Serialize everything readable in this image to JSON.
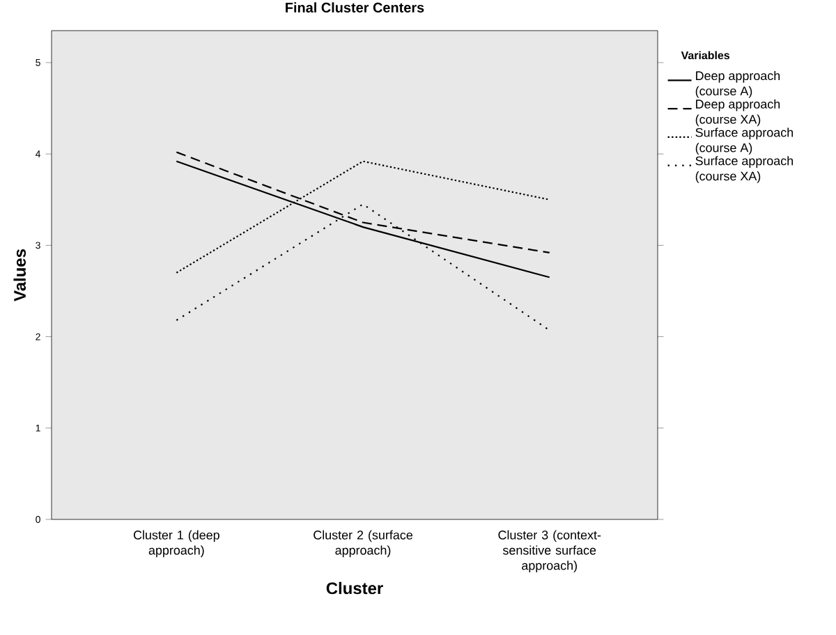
{
  "chart_data": {
    "type": "line",
    "title": "Final Cluster Centers",
    "xlabel": "Cluster",
    "ylabel": "Values",
    "legend_title": "Variables",
    "legend": "right",
    "grid": false,
    "marker": "none",
    "categories": [
      "Cluster 1 (deep approach)",
      "Cluster 2 (surface approach)",
      "Cluster 3 (context-sensitive surface approach)"
    ],
    "ylim": [
      0,
      5.35
    ],
    "yticks": [
      0,
      1,
      2,
      3,
      4,
      5
    ],
    "series": [
      {
        "name": "Deep approach (course A)",
        "color": "#000000",
        "line_style": "solid",
        "values": [
          3.92,
          3.2,
          2.65
        ]
      },
      {
        "name": "Deep approach (course XA)",
        "color": "#000000",
        "line_style": "dashed",
        "values": [
          4.02,
          3.25,
          2.92
        ]
      },
      {
        "name": "Surface approach (course A)",
        "color": "#000000",
        "line_style": "dotted",
        "values": [
          2.7,
          3.92,
          3.5
        ]
      },
      {
        "name": "Surface approach (course XA)",
        "color": "#000000",
        "line_style": "loosely dotted",
        "values": [
          2.18,
          3.45,
          2.07
        ]
      }
    ]
  }
}
